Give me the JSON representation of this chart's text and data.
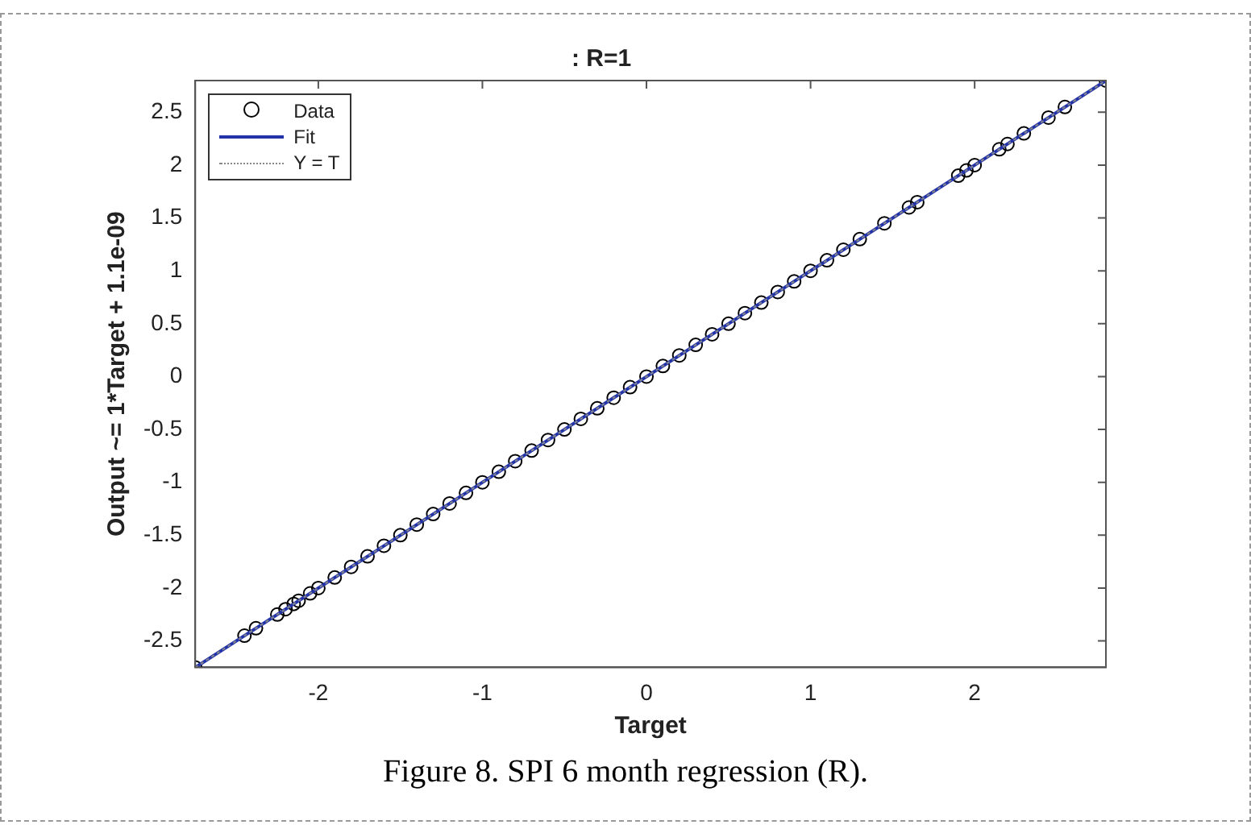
{
  "chart_data": {
    "type": "scatter",
    "title": ": R=1",
    "xlabel": "Target",
    "ylabel": "Output ~= 1*Target + 1.1e-09",
    "annotations": [
      "Figure 8. SPI 6 month regression (R)."
    ],
    "xlim": [
      -2.75,
      2.8
    ],
    "ylim": [
      -2.75,
      2.8
    ],
    "xticks": [
      -2,
      -1,
      0,
      1,
      2
    ],
    "yticks": [
      -2.5,
      -2,
      -1.5,
      -1,
      -0.5,
      0,
      0.5,
      1,
      1.5,
      2,
      2.5
    ],
    "grid": false,
    "legend": "top left",
    "series": [
      {
        "name": "Data",
        "marker": "circle",
        "color": "#000000",
        "x": [
          -2.75,
          -2.45,
          -2.38,
          -2.25,
          -2.2,
          -2.15,
          -2.12,
          -2.05,
          -2.0,
          -1.9,
          -1.8,
          -1.7,
          -1.6,
          -1.5,
          -1.4,
          -1.3,
          -1.2,
          -1.1,
          -1.0,
          -0.9,
          -0.8,
          -0.7,
          -0.6,
          -0.5,
          -0.4,
          -0.3,
          -0.2,
          -0.1,
          0.0,
          0.1,
          0.2,
          0.3,
          0.4,
          0.5,
          0.6,
          0.7,
          0.8,
          0.9,
          1.0,
          1.1,
          1.2,
          1.3,
          1.45,
          1.6,
          1.65,
          1.9,
          1.95,
          2.0,
          2.15,
          2.2,
          2.3,
          2.45,
          2.55,
          2.8
        ],
        "values": [
          -2.75,
          -2.45,
          -2.38,
          -2.25,
          -2.2,
          -2.15,
          -2.12,
          -2.05,
          -2.0,
          -1.9,
          -1.8,
          -1.7,
          -1.6,
          -1.5,
          -1.4,
          -1.3,
          -1.2,
          -1.1,
          -1.0,
          -0.9,
          -0.8,
          -0.7,
          -0.6,
          -0.5,
          -0.4,
          -0.3,
          -0.2,
          -0.1,
          0.0,
          0.1,
          0.2,
          0.3,
          0.4,
          0.5,
          0.6,
          0.7,
          0.8,
          0.9,
          1.0,
          1.1,
          1.2,
          1.3,
          1.45,
          1.6,
          1.65,
          1.9,
          1.95,
          2.0,
          2.15,
          2.2,
          2.3,
          2.45,
          2.55,
          2.8
        ]
      },
      {
        "name": "Fit",
        "type": "line",
        "line_style": "solid",
        "color": "#2233aa",
        "x": [
          -2.75,
          2.8
        ],
        "values": [
          -2.75,
          2.8
        ]
      },
      {
        "name": "Y = T",
        "type": "line",
        "line_style": "dotted",
        "color": "#888888",
        "x": [
          -2.75,
          2.8
        ],
        "values": [
          -2.75,
          2.8
        ]
      }
    ]
  }
}
